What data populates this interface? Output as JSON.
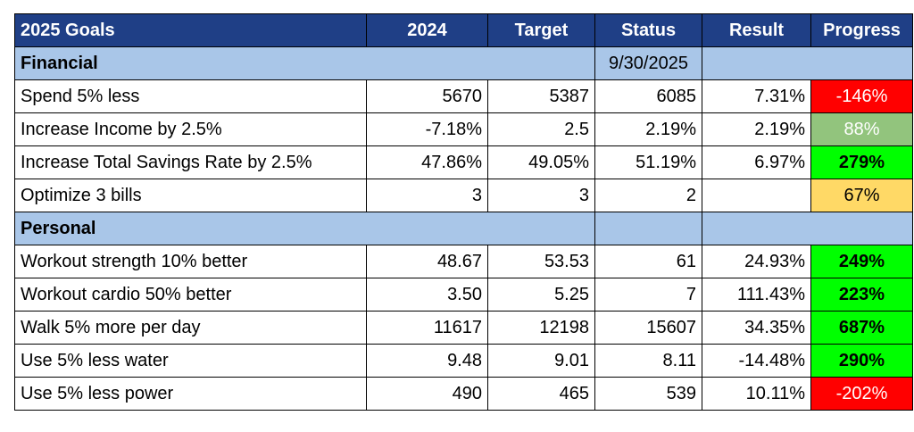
{
  "headers": [
    "2025 Goals",
    "2024",
    "Target",
    "Status",
    "Result",
    "Progress"
  ],
  "sections": [
    {
      "name": "Financial",
      "date": "9/30/2025",
      "rows": [
        {
          "goal": "Spend 5% less",
          "y2024": "5670",
          "target": "5387",
          "status": "6085",
          "result": "7.31%",
          "progress": "-146%",
          "color": "red"
        },
        {
          "goal": "Increase Income by 2.5%",
          "y2024": "-7.18%",
          "target": "2.5",
          "status": "2.19%",
          "result": "2.19%",
          "progress": "88%",
          "color": "lightgreen"
        },
        {
          "goal": "Increase Total Savings Rate by 2.5%",
          "y2024": "47.86%",
          "target": "49.05%",
          "status": "51.19%",
          "result": "6.97%",
          "progress": "279%",
          "color": "green"
        },
        {
          "goal": "Optimize 3 bills",
          "y2024": "3",
          "target": "3",
          "status": "2",
          "result": "",
          "progress": "67%",
          "color": "yellow"
        }
      ]
    },
    {
      "name": "Personal",
      "date": "",
      "rows": [
        {
          "goal": "Workout strength 10% better",
          "y2024": "48.67",
          "target": "53.53",
          "status": "61",
          "result": "24.93%",
          "progress": "249%",
          "color": "green"
        },
        {
          "goal": "Workout cardio 50% better",
          "y2024": "3.50",
          "target": "5.25",
          "status": "7",
          "result": "111.43%",
          "progress": "223%",
          "color": "green"
        },
        {
          "goal": "Walk 5% more per day",
          "y2024": "11617",
          "target": "12198",
          "status": "15607",
          "result": "34.35%",
          "progress": "687%",
          "color": "green"
        },
        {
          "goal": "Use 5% less water",
          "y2024": "9.48",
          "target": "9.01",
          "status": "8.11",
          "result": "-14.48%",
          "progress": "290%",
          "color": "green"
        },
        {
          "goal": "Use 5% less power",
          "y2024": "490",
          "target": "465",
          "status": "539",
          "result": "10.11%",
          "progress": "-202%",
          "color": "red"
        }
      ]
    }
  ]
}
